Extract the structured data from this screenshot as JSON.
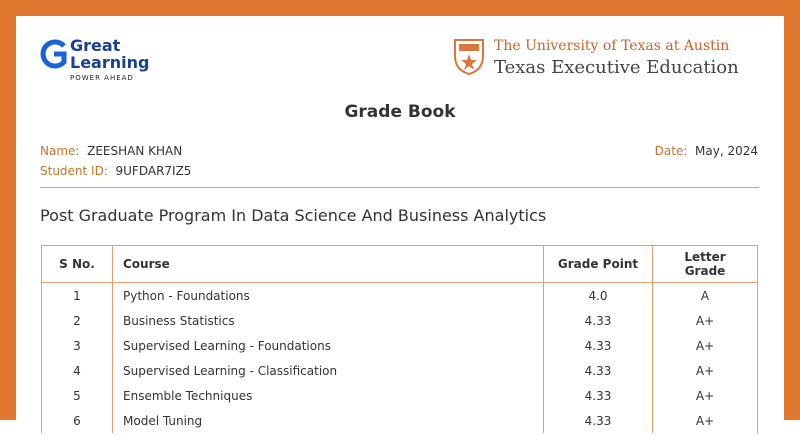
{
  "header": {
    "left_logo": {
      "line1": "Great",
      "line2": "Learning",
      "tagline": "POWER AHEAD"
    },
    "right_logo": {
      "line1": "The University of Texas at Austin",
      "line2": "Texas Executive Education"
    }
  },
  "title": "Grade Book",
  "student": {
    "name_label": "Name:",
    "name": "ZEESHAN KHAN",
    "id_label": "Student ID:",
    "id": "9UFDAR7IZ5",
    "date_label": "Date:",
    "date": "May, 2024"
  },
  "program": "Post Graduate Program In Data Science And Business Analytics",
  "table": {
    "columns": [
      "S No.",
      "Course",
      "Grade Point",
      "Letter Grade"
    ],
    "rows": [
      [
        "1",
        "Python - Foundations",
        "4.0",
        "A"
      ],
      [
        "2",
        "Business Statistics",
        "4.33",
        "A+"
      ],
      [
        "3",
        "Supervised Learning - Foundations",
        "4.33",
        "A+"
      ],
      [
        "4",
        "Supervised Learning - Classification",
        "4.33",
        "A+"
      ],
      [
        "5",
        "Ensemble Techniques",
        "4.33",
        "A+"
      ],
      [
        "6",
        "Model Tuning",
        "4.33",
        "A+"
      ]
    ]
  }
}
